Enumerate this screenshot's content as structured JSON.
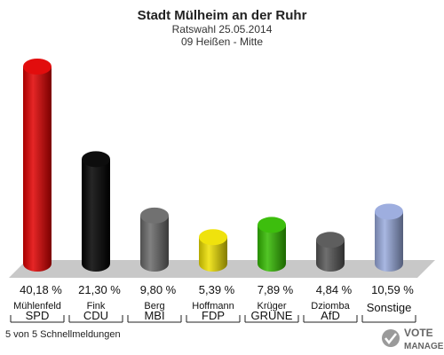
{
  "title": "Stadt Mülheim an der Ruhr",
  "subtitle1": "Ratswahl 25.05.2014",
  "subtitle2": "09 Heißen - Mitte",
  "footer": "5 von 5 Schnellmeldungen",
  "logo": {
    "text_top": "VOTE",
    "text_bottom": "MANAGER"
  },
  "chart_data": {
    "type": "bar",
    "categories": [
      "SPD",
      "CDU",
      "MBI",
      "FDP",
      "GRÜNE",
      "AfD",
      "Sonstige"
    ],
    "candidates": [
      "Mühlenfeld",
      "Fink",
      "Berg",
      "Hoffmann",
      "Krüger",
      "Dziomba",
      ""
    ],
    "values": [
      40.18,
      21.3,
      9.8,
      5.39,
      7.89,
      4.84,
      10.59
    ],
    "labels": [
      "40,18 %",
      "21,30 %",
      "9,80 %",
      "5,39 %",
      "7,89 %",
      "4,84 %",
      "10,59 %"
    ],
    "colors": [
      "#e00000",
      "#000000",
      "#6a6a6a",
      "#eee000",
      "#33bb00",
      "#555555",
      "#99aadd"
    ],
    "ylim": [
      0,
      40.18
    ]
  }
}
